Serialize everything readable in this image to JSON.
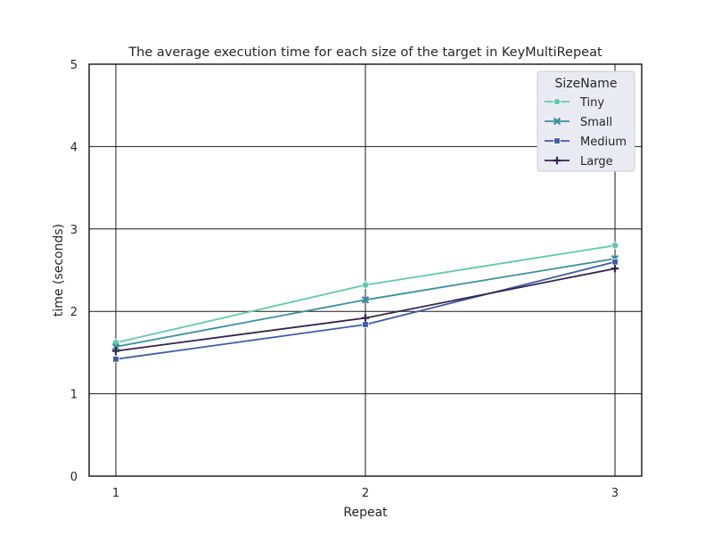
{
  "chart_data": {
    "type": "line",
    "title": "The average execution time for each size of the target in KeyMultiRepeat",
    "xlabel": "Repeat",
    "ylabel": "time (seconds)",
    "x": [
      1,
      2,
      3
    ],
    "x_ticks": [
      "1",
      "2",
      "3"
    ],
    "ylim": [
      0,
      5
    ],
    "y_ticks": [
      "0",
      "1",
      "2",
      "3",
      "4",
      "5"
    ],
    "grid": true,
    "legend": {
      "title": "SizeName",
      "placement": "top-right"
    },
    "series": [
      {
        "name": "Tiny",
        "values": [
          1.62,
          2.32,
          2.8
        ],
        "color": "#5fcca9",
        "marker": "circle"
      },
      {
        "name": "Small",
        "values": [
          1.57,
          2.14,
          2.64
        ],
        "color": "#3890a0",
        "marker": "x"
      },
      {
        "name": "Medium",
        "values": [
          1.42,
          1.84,
          2.6
        ],
        "color": "#3e5da7",
        "marker": "square"
      },
      {
        "name": "Large",
        "values": [
          1.52,
          1.92,
          2.52
        ],
        "color": "#35244e",
        "marker": "plus"
      }
    ]
  }
}
